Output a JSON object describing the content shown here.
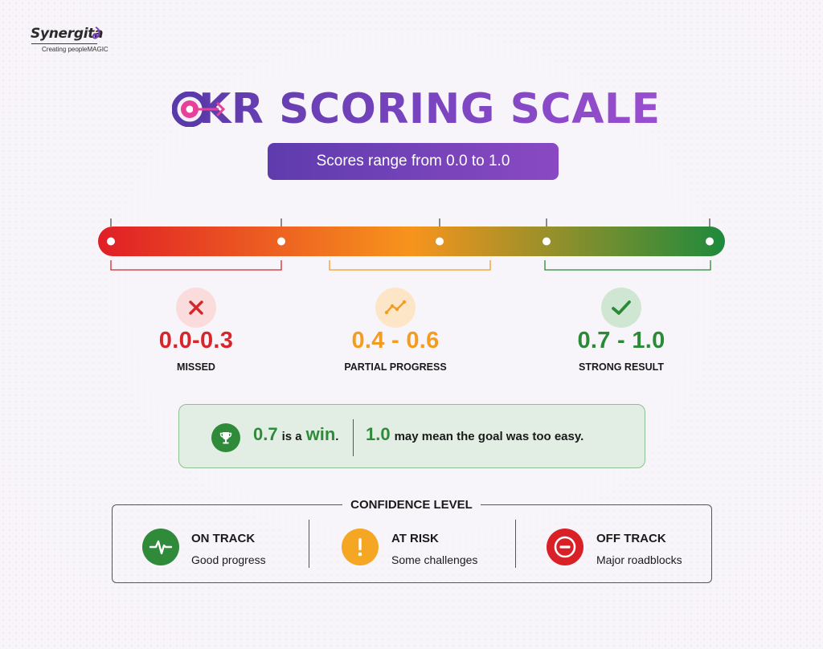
{
  "brand": {
    "name": "Synergita",
    "tagline": "Creating peopleMAGIC"
  },
  "header": {
    "title": "OKR SCORING SCALE",
    "subtitle": "Scores range from 0.0 to 1.0"
  },
  "scale": {
    "min": 0.0,
    "max": 1.0,
    "gradient_colors": [
      "#e01e26",
      "#f7941d",
      "#1e8a3c"
    ],
    "ranges": [
      {
        "value": "0.0-0.3",
        "label": "MISSED",
        "icon": "x-icon",
        "color": "#d6262b",
        "bg": "#fbdcdc"
      },
      {
        "value": "0.4 - 0.6",
        "label": "PARTIAL PROGRESS",
        "icon": "trend-up-icon",
        "color": "#f39c1f",
        "bg": "#fde6c8"
      },
      {
        "value": "0.7 - 1.0",
        "label": "STRONG RESULT",
        "icon": "checkmark-icon",
        "color": "#2a8a36",
        "bg": "#cfe6d2"
      }
    ]
  },
  "win_note": {
    "icon": "trophy-icon",
    "num1": "0.7",
    "is_a": "is a",
    "win": "win",
    "dot": ".",
    "num2": "1.0",
    "rest": "may mean the goal was too easy."
  },
  "confidence": {
    "title": "CONFIDENCE LEVEL",
    "levels": [
      {
        "label": "ON TRACK",
        "desc": "Good progress",
        "icon": "heartbeat-icon",
        "color": "#2f8a3a"
      },
      {
        "label": "AT RISK",
        "desc": "Some challenges",
        "icon": "exclamation-icon",
        "color": "#f5a623"
      },
      {
        "label": "OFF TRACK",
        "desc": "Major roadblocks",
        "icon": "minus-circle-icon",
        "color": "#d92027"
      }
    ]
  }
}
